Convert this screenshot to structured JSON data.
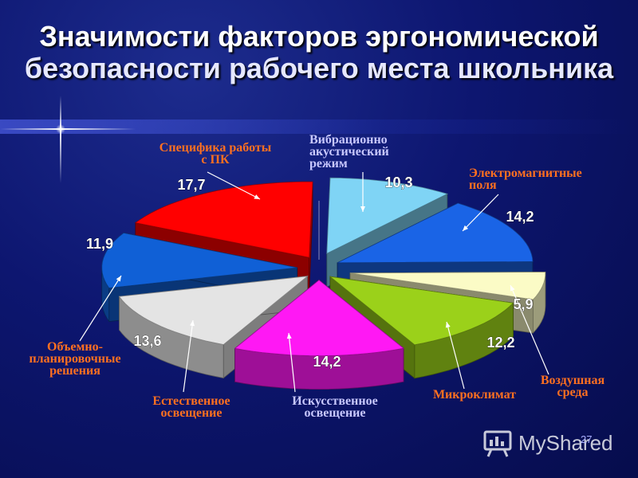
{
  "title": {
    "line1": "Значимости факторов эргономической",
    "line2": "безопасности рабочего места школьника"
  },
  "chart_data": {
    "type": "pie",
    "title": "Значимости факторов эргономической безопасности рабочего места школьника",
    "slices": [
      {
        "label": "Вибрационно акустический режим",
        "label_lines": [
          "Вибрационно",
          "акустический",
          "режим"
        ],
        "value": 10.3,
        "value_text": "10,3",
        "color": "#7fd4f5"
      },
      {
        "label": "Электромагнитные поля",
        "label_lines": [
          "Электромагнитные",
          "поля"
        ],
        "value": 14.2,
        "value_text": "14,2",
        "color": "#1a64e6"
      },
      {
        "label": "Воздушная среда",
        "label_lines": [
          "Воздушная",
          "среда"
        ],
        "value": 5.9,
        "value_text": "5,9",
        "color": "#fbfbc6"
      },
      {
        "label": "Микроклимат",
        "label_lines": [
          "Микроклимат"
        ],
        "value": 12.2,
        "value_text": "12,2",
        "color": "#9bd11a"
      },
      {
        "label": "Искусственное освещение",
        "label_lines": [
          "Искусственное",
          "освещение"
        ],
        "value": 14.2,
        "value_text": "14,2",
        "color": "#ff18f4"
      },
      {
        "label": "Естественное освещение",
        "label_lines": [
          "Естественное",
          "освещение"
        ],
        "value": 13.6,
        "value_text": "13,6",
        "color": "#e4e4e4"
      },
      {
        "label": "Объемно-планировочные решения",
        "label_lines": [
          "Объемно-",
          "планировочные",
          "решения"
        ],
        "value": 11.9,
        "value_text": "11,9",
        "color": "#1060d6"
      },
      {
        "label": "Специфика работы с ПК",
        "label_lines": [
          "Специфика работы",
          "с ПК"
        ],
        "value": 17.7,
        "value_text": "17,7",
        "color": "#ff0000"
      }
    ]
  },
  "watermark": {
    "text": "MyShared",
    "icon": "presentation-board-icon"
  },
  "slide_number": "27",
  "colors": {
    "background": "#0d1670",
    "category_label": "#ff7020",
    "category_label_special": "#c8c8ff",
    "value_label": "#ffffff",
    "leader_line": "#ffffff"
  }
}
